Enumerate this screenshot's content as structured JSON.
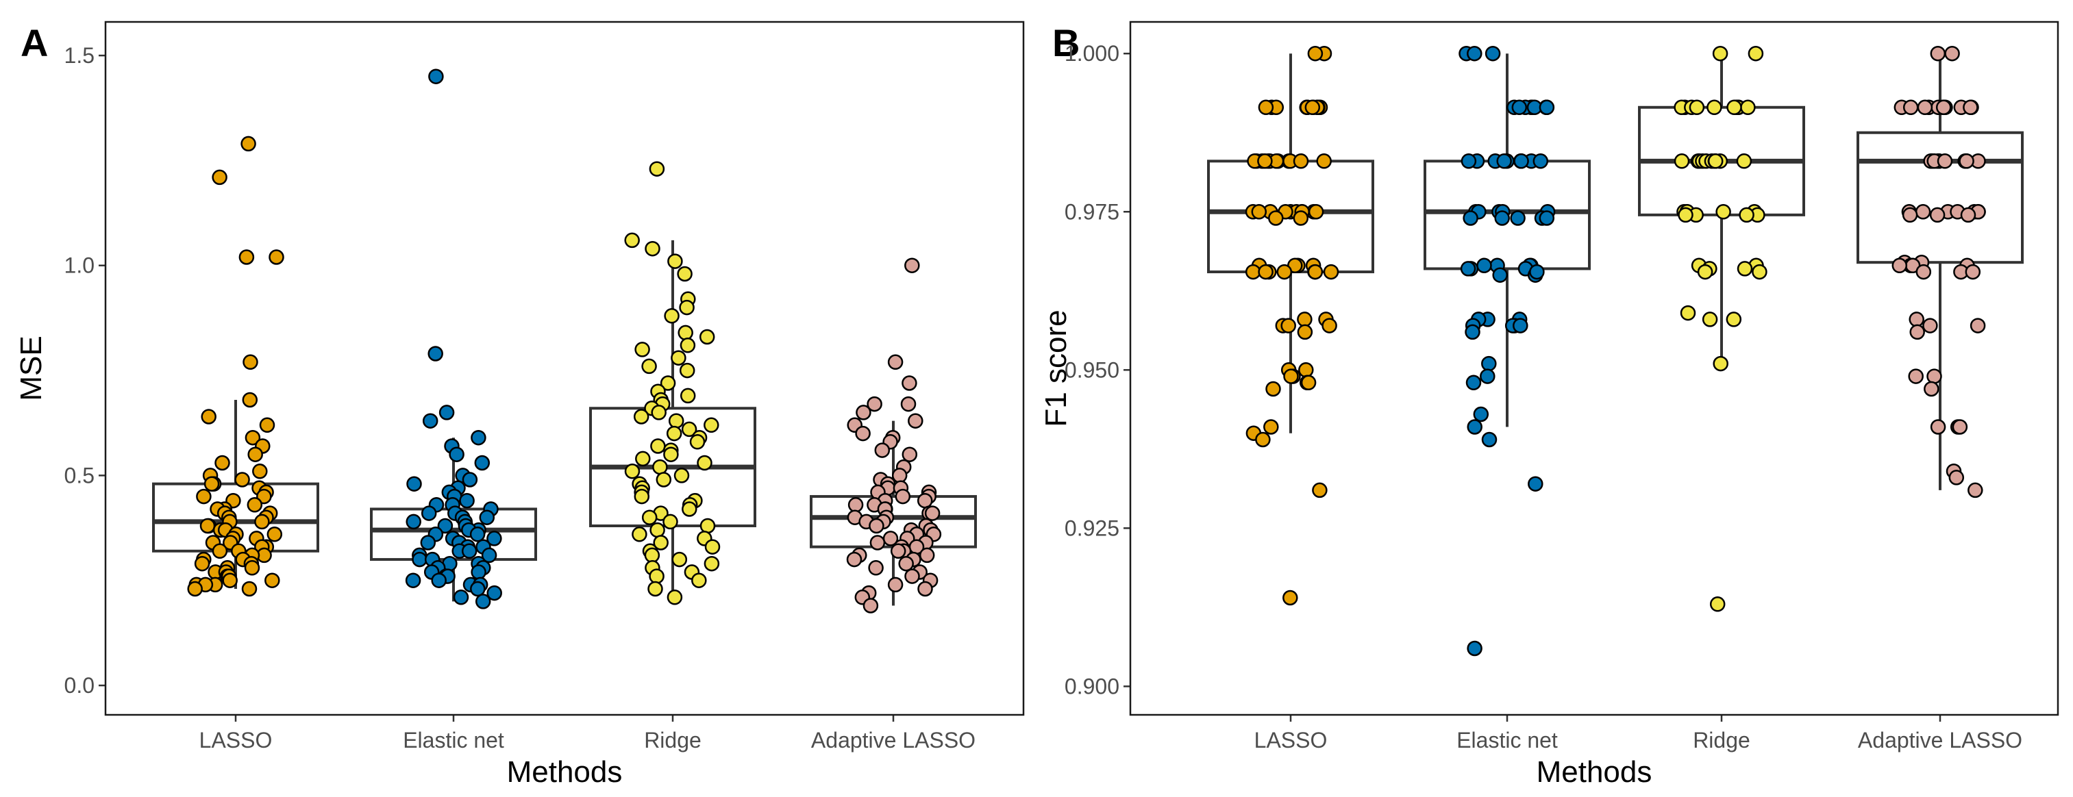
{
  "chart_data": [
    {
      "type": "box",
      "panel": "A",
      "xlabel": "Methods",
      "ylabel": "MSE",
      "ylim": [
        -0.07,
        1.58
      ],
      "yticks": [
        0.0,
        0.5,
        1.0,
        1.5
      ],
      "ytick_labels": [
        "0.0",
        "0.5",
        "1.0",
        "1.5"
      ],
      "categories": [
        "LASSO",
        "Elastic net",
        "Ridge",
        "Adaptive LASSO"
      ],
      "colors": [
        "#E69F00",
        "#0072B2",
        "#F0E442",
        "#D8A39A"
      ],
      "grid": false,
      "boxes": [
        {
          "category": "LASSO",
          "lower_whisker": 0.23,
          "q1": 0.32,
          "median": 0.39,
          "q3": 0.48,
          "upper_whisker": 0.68,
          "points": [
            1.29,
            1.21,
            1.02,
            1.02,
            0.77,
            0.68,
            0.64,
            0.62,
            0.59,
            0.57,
            0.55,
            0.53,
            0.51,
            0.5,
            0.49,
            0.48,
            0.48,
            0.47,
            0.46,
            0.45,
            0.45,
            0.44,
            0.43,
            0.42,
            0.42,
            0.41,
            0.41,
            0.4,
            0.4,
            0.39,
            0.39,
            0.38,
            0.38,
            0.37,
            0.37,
            0.36,
            0.36,
            0.35,
            0.35,
            0.34,
            0.34,
            0.33,
            0.33,
            0.32,
            0.32,
            0.31,
            0.31,
            0.3,
            0.3,
            0.29,
            0.29,
            0.28,
            0.28,
            0.27,
            0.27,
            0.26,
            0.26,
            0.25,
            0.25,
            0.24,
            0.24,
            0.24,
            0.23,
            0.23
          ]
        },
        {
          "category": "Elastic net",
          "lower_whisker": 0.2,
          "q1": 0.3,
          "median": 0.37,
          "q3": 0.42,
          "upper_whisker": 0.59,
          "points": [
            1.45,
            0.79,
            0.65,
            0.63,
            0.59,
            0.57,
            0.55,
            0.53,
            0.5,
            0.49,
            0.48,
            0.47,
            0.46,
            0.45,
            0.44,
            0.43,
            0.43,
            0.42,
            0.41,
            0.41,
            0.4,
            0.4,
            0.39,
            0.39,
            0.38,
            0.38,
            0.37,
            0.37,
            0.36,
            0.36,
            0.35,
            0.35,
            0.34,
            0.34,
            0.33,
            0.33,
            0.32,
            0.32,
            0.31,
            0.31,
            0.3,
            0.3,
            0.29,
            0.29,
            0.28,
            0.28,
            0.27,
            0.27,
            0.26,
            0.26,
            0.25,
            0.25,
            0.24,
            0.24,
            0.23,
            0.22,
            0.21,
            0.2
          ]
        },
        {
          "category": "Ridge",
          "lower_whisker": 0.21,
          "q1": 0.38,
          "median": 0.52,
          "q3": 0.66,
          "upper_whisker": 1.06,
          "points": [
            1.23,
            1.06,
            1.04,
            1.01,
            0.98,
            0.92,
            0.9,
            0.88,
            0.84,
            0.83,
            0.81,
            0.8,
            0.78,
            0.76,
            0.75,
            0.72,
            0.7,
            0.69,
            0.68,
            0.67,
            0.66,
            0.65,
            0.64,
            0.63,
            0.62,
            0.61,
            0.6,
            0.59,
            0.58,
            0.57,
            0.56,
            0.55,
            0.54,
            0.53,
            0.52,
            0.51,
            0.5,
            0.49,
            0.48,
            0.47,
            0.46,
            0.45,
            0.44,
            0.43,
            0.42,
            0.41,
            0.4,
            0.39,
            0.38,
            0.37,
            0.36,
            0.35,
            0.34,
            0.33,
            0.32,
            0.31,
            0.3,
            0.29,
            0.28,
            0.27,
            0.26,
            0.25,
            0.23,
            0.21
          ]
        },
        {
          "category": "Adaptive LASSO",
          "lower_whisker": 0.19,
          "q1": 0.33,
          "median": 0.4,
          "q3": 0.45,
          "upper_whisker": 0.63,
          "points": [
            1.0,
            0.77,
            0.72,
            0.67,
            0.67,
            0.65,
            0.63,
            0.62,
            0.6,
            0.59,
            0.58,
            0.56,
            0.55,
            0.52,
            0.5,
            0.49,
            0.48,
            0.47,
            0.47,
            0.46,
            0.46,
            0.45,
            0.45,
            0.44,
            0.44,
            0.43,
            0.43,
            0.42,
            0.42,
            0.41,
            0.41,
            0.4,
            0.4,
            0.39,
            0.39,
            0.38,
            0.38,
            0.37,
            0.37,
            0.36,
            0.36,
            0.35,
            0.35,
            0.34,
            0.34,
            0.33,
            0.33,
            0.32,
            0.32,
            0.31,
            0.31,
            0.3,
            0.3,
            0.29,
            0.28,
            0.27,
            0.26,
            0.25,
            0.24,
            0.23,
            0.22,
            0.21,
            0.19
          ]
        }
      ]
    },
    {
      "type": "box",
      "panel": "B",
      "xlabel": "Methods",
      "ylabel": "F1 score",
      "ylim": [
        0.8955,
        1.005
      ],
      "yticks": [
        0.9,
        0.925,
        0.95,
        0.975,
        1.0
      ],
      "ytick_labels": [
        "0.900",
        "0.925",
        "0.950",
        "0.975",
        "1.000"
      ],
      "categories": [
        "LASSO",
        "Elastic net",
        "Ridge",
        "Adaptive LASSO"
      ],
      "colors": [
        "#E69F00",
        "#0072B2",
        "#F0E442",
        "#D8A39A"
      ],
      "grid": false,
      "boxes": [
        {
          "category": "LASSO",
          "lower_whisker": 0.94,
          "q1": 0.9655,
          "median": 0.975,
          "q3": 0.983,
          "upper_whisker": 1.0,
          "points": [
            1.0,
            1.0,
            0.9915,
            0.9915,
            0.9915,
            0.9915,
            0.9915,
            0.9915,
            0.9915,
            0.9915,
            0.9915,
            0.9915,
            0.983,
            0.983,
            0.983,
            0.983,
            0.983,
            0.983,
            0.983,
            0.983,
            0.983,
            0.983,
            0.983,
            0.983,
            0.975,
            0.975,
            0.975,
            0.975,
            0.975,
            0.975,
            0.975,
            0.975,
            0.975,
            0.975,
            0.974,
            0.974,
            0.9665,
            0.9665,
            0.9665,
            0.9665,
            0.9655,
            0.9655,
            0.9655,
            0.9655,
            0.9655,
            0.9655,
            0.9655,
            0.958,
            0.958,
            0.957,
            0.957,
            0.957,
            0.956,
            0.95,
            0.95,
            0.949,
            0.949,
            0.948,
            0.948,
            0.947,
            0.941,
            0.94,
            0.939,
            0.931,
            0.914
          ]
        },
        {
          "category": "Elastic net",
          "lower_whisker": 0.941,
          "q1": 0.966,
          "median": 0.975,
          "q3": 0.983,
          "upper_whisker": 1.0,
          "points": [
            1.0,
            1.0,
            1.0,
            0.9915,
            0.9915,
            0.9915,
            0.9915,
            0.9915,
            0.9915,
            0.9915,
            0.9915,
            0.9915,
            0.983,
            0.983,
            0.983,
            0.983,
            0.983,
            0.983,
            0.983,
            0.983,
            0.983,
            0.983,
            0.975,
            0.975,
            0.975,
            0.975,
            0.975,
            0.974,
            0.974,
            0.974,
            0.974,
            0.974,
            0.9665,
            0.9665,
            0.9665,
            0.9665,
            0.966,
            0.966,
            0.966,
            0.965,
            0.965,
            0.9655,
            0.958,
            0.958,
            0.958,
            0.957,
            0.957,
            0.957,
            0.957,
            0.956,
            0.951,
            0.949,
            0.948,
            0.943,
            0.941,
            0.939,
            0.932,
            0.906
          ]
        },
        {
          "category": "Ridge",
          "lower_whisker": 0.951,
          "q1": 0.9745,
          "median": 0.983,
          "q3": 0.9915,
          "upper_whisker": 1.0,
          "points": [
            1.0,
            1.0,
            0.9915,
            0.9915,
            0.9915,
            0.9915,
            0.9915,
            0.9915,
            0.9915,
            0.9915,
            0.9915,
            0.9915,
            0.983,
            0.983,
            0.983,
            0.983,
            0.983,
            0.983,
            0.983,
            0.983,
            0.983,
            0.983,
            0.975,
            0.975,
            0.975,
            0.975,
            0.975,
            0.9745,
            0.9745,
            0.9745,
            0.9745,
            0.9665,
            0.9665,
            0.966,
            0.966,
            0.9655,
            0.9655,
            0.959,
            0.958,
            0.958,
            0.951,
            0.913
          ]
        },
        {
          "category": "Adaptive LASSO",
          "lower_whisker": 0.931,
          "q1": 0.967,
          "median": 0.983,
          "q3": 0.9875,
          "upper_whisker": 1.0,
          "points": [
            1.0,
            1.0,
            0.9915,
            0.9915,
            0.9915,
            0.9915,
            0.9915,
            0.9915,
            0.9915,
            0.9915,
            0.9915,
            0.9915,
            0.9915,
            0.983,
            0.983,
            0.983,
            0.983,
            0.983,
            0.983,
            0.983,
            0.983,
            0.983,
            0.983,
            0.983,
            0.975,
            0.975,
            0.975,
            0.975,
            0.975,
            0.975,
            0.975,
            0.9745,
            0.9745,
            0.9745,
            0.967,
            0.967,
            0.9665,
            0.9665,
            0.9665,
            0.9665,
            0.9655,
            0.9655,
            0.9655,
            0.958,
            0.957,
            0.957,
            0.956,
            0.949,
            0.949,
            0.947,
            0.941,
            0.941,
            0.941,
            0.934,
            0.933,
            0.931
          ]
        }
      ]
    }
  ]
}
